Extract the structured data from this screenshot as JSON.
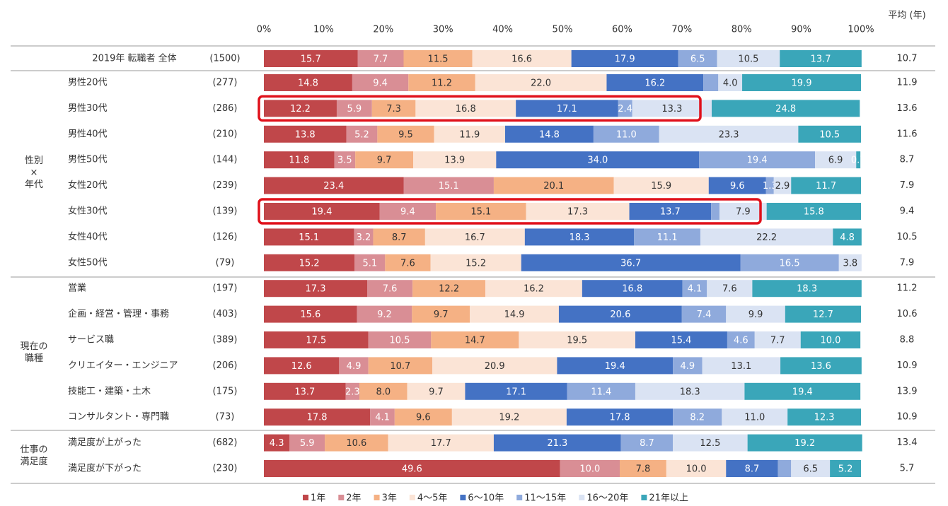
{
  "chart_data": {
    "type": "bar",
    "orientation": "horizontal",
    "stacked": true,
    "avg_header": "平均 (年)",
    "xlim": [
      0,
      100
    ],
    "xticks": [
      {
        "value": 0,
        "label": "0%"
      },
      {
        "value": 10,
        "label": "10%"
      },
      {
        "value": 20,
        "label": "20%"
      },
      {
        "value": 30,
        "label": "30%"
      },
      {
        "value": 40,
        "label": "40%"
      },
      {
        "value": 50,
        "label": "50%"
      },
      {
        "value": 60,
        "label": "60%"
      },
      {
        "value": 70,
        "label": "70%"
      },
      {
        "value": 80,
        "label": "80%"
      },
      {
        "value": 90,
        "label": "90%"
      },
      {
        "value": 100,
        "label": "100%"
      }
    ],
    "categories": [
      "2019年 転職者 全体",
      "男性20代",
      "男性30代",
      "男性40代",
      "男性50代",
      "女性20代",
      "女性30代",
      "女性40代",
      "女性50代",
      "営業",
      "企画・経営・管理・事務",
      "サービス職",
      "クリエイター・エンジニア",
      "技能工・建築・土木",
      "コンサルタント・専門職",
      "満足度が上がった",
      "満足度が下がった"
    ],
    "sample_sizes": [
      "(1500)",
      "(277)",
      "(286)",
      "(210)",
      "(144)",
      "(239)",
      "(139)",
      "(126)",
      "(79)",
      "(197)",
      "(403)",
      "(389)",
      "(206)",
      "(175)",
      "(73)",
      "(682)",
      "(230)"
    ],
    "averages": [
      10.7,
      11.9,
      13.6,
      11.6,
      8.7,
      7.9,
      9.4,
      10.5,
      7.9,
      11.2,
      10.6,
      8.8,
      10.9,
      13.9,
      10.9,
      13.4,
      5.7
    ],
    "groups": [
      {
        "lines": [
          "性別",
          "×",
          "年代"
        ],
        "from": 1,
        "to": 8
      },
      {
        "lines": [
          "現在の",
          "職種"
        ],
        "from": 9,
        "to": 14
      },
      {
        "lines": [
          "仕事の",
          "満足度"
        ],
        "from": 15,
        "to": 16
      }
    ],
    "series": [
      {
        "name": "1年",
        "color": "#c0474a",
        "values": [
          15.7,
          14.8,
          12.2,
          13.8,
          11.8,
          23.4,
          19.4,
          15.1,
          15.2,
          17.3,
          15.6,
          17.5,
          12.6,
          13.7,
          17.8,
          4.3,
          49.6
        ],
        "value_labels": [
          "15.7",
          "14.8",
          "12.2",
          "13.8",
          "11.8",
          "23.4",
          "19.4",
          "15.1",
          "15.2",
          "17.3",
          "15.6",
          "17.5",
          "12.6",
          "13.7",
          "17.8",
          "4.3",
          "49.6"
        ]
      },
      {
        "name": "2年",
        "color": "#d98e95",
        "values": [
          7.7,
          9.4,
          5.9,
          5.2,
          3.5,
          15.1,
          9.4,
          3.2,
          5.1,
          7.6,
          9.2,
          10.5,
          4.9,
          2.3,
          4.1,
          5.9,
          10.0
        ],
        "value_labels": [
          "7.7",
          "9.4",
          "5.9",
          "5.2",
          "3.5",
          "15.1",
          "9.4",
          "3.2",
          "5.1",
          "7.6",
          "9.2",
          "10.5",
          "4.9",
          "2.3",
          "4.1",
          "5.9",
          "10.0"
        ]
      },
      {
        "name": "3年",
        "color": "#f5b184",
        "values": [
          11.5,
          11.2,
          7.3,
          9.5,
          9.7,
          20.1,
          15.1,
          8.7,
          7.6,
          12.2,
          9.7,
          14.7,
          10.7,
          8.0,
          9.6,
          10.6,
          7.8
        ],
        "value_labels": [
          "11.5",
          "11.2",
          "7.3",
          "9.5",
          "9.7",
          "20.1",
          "15.1",
          "8.7",
          "7.6",
          "12.2",
          "9.7",
          "14.7",
          "10.7",
          "8.0",
          "9.6",
          "10.6",
          "7.8"
        ]
      },
      {
        "name": "4～5年",
        "color": "#fbe4d6",
        "values": [
          16.6,
          22.0,
          16.8,
          11.9,
          13.9,
          15.9,
          17.3,
          16.7,
          15.2,
          16.2,
          14.9,
          19.5,
          20.9,
          9.7,
          19.2,
          17.7,
          10.0
        ],
        "value_labels": [
          "16.6",
          "22.0",
          "16.8",
          "11.9",
          "13.9",
          "15.9",
          "17.3",
          "16.7",
          "15.2",
          "16.2",
          "14.9",
          "19.5",
          "20.9",
          "9.7",
          "19.2",
          "17.7",
          "10.0"
        ]
      },
      {
        "name": "6～10年",
        "color": "#4472c4",
        "values": [
          17.9,
          16.2,
          17.1,
          14.8,
          34.0,
          9.6,
          13.7,
          18.3,
          36.7,
          16.8,
          20.6,
          15.4,
          19.4,
          17.1,
          17.8,
          21.3,
          8.7
        ],
        "value_labels": [
          "17.9",
          "16.2",
          "17.1",
          "14.8",
          "34.0",
          "9.6",
          "13.7",
          "18.3",
          "36.7",
          "16.8",
          "20.6",
          "15.4",
          "19.4",
          "17.1",
          "17.8",
          "21.3",
          "8.7"
        ]
      },
      {
        "name": "11～15年",
        "color": "#8faadc",
        "values": [
          6.5,
          2.5,
          2.4,
          11.0,
          19.4,
          1.3,
          1.4,
          11.1,
          16.5,
          4.1,
          7.4,
          4.6,
          4.9,
          11.4,
          8.2,
          8.7,
          2.2
        ],
        "value_labels": [
          "6.5",
          null,
          "2.4",
          "11.0",
          "19.4",
          "1.3",
          null,
          "11.1",
          "16.5",
          "4.1",
          "7.4",
          "4.6",
          "4.9",
          "11.4",
          "8.2",
          "8.7",
          null
        ]
      },
      {
        "name": "16～20年",
        "color": "#dae3f3",
        "values": [
          10.5,
          4.0,
          13.3,
          23.3,
          6.9,
          2.9,
          7.9,
          22.2,
          3.8,
          7.6,
          9.9,
          7.7,
          13.1,
          18.3,
          11.0,
          12.5,
          6.5
        ],
        "value_labels": [
          "10.5",
          "4.0",
          "13.3",
          "23.3",
          "6.9",
          "2.9",
          "7.9",
          "22.2",
          "3.8",
          "7.6",
          "9.9",
          "7.7",
          "13.1",
          "18.3",
          "11.0",
          "12.5",
          "6.5"
        ]
      },
      {
        "name": "21年以上",
        "color": "#3aa6b9",
        "values": [
          13.7,
          19.9,
          24.8,
          10.5,
          0.7,
          11.7,
          15.8,
          4.8,
          0,
          18.3,
          12.7,
          10.0,
          13.6,
          19.4,
          12.3,
          19.2,
          5.2
        ],
        "value_labels": [
          "13.7",
          "19.9",
          "24.8",
          "10.5",
          "0.7",
          "11.7",
          "15.8",
          "4.8",
          null,
          "18.3",
          "12.7",
          "10.0",
          "13.6",
          "19.4",
          "12.3",
          "19.2",
          "5.2"
        ]
      }
    ]
  }
}
